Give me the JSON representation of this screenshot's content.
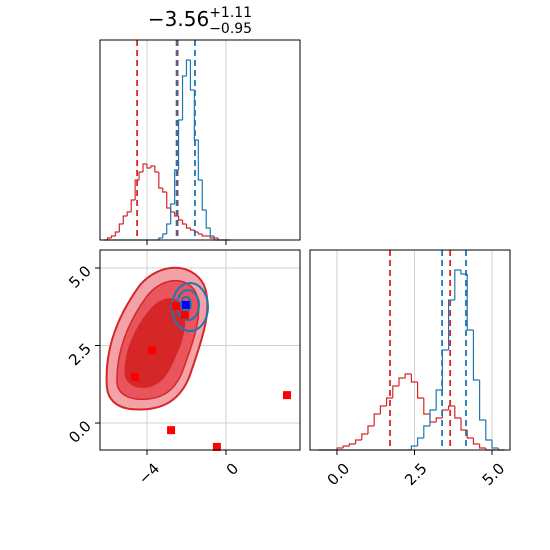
{
  "chart_data": [
    {
      "type": "histogram",
      "title": "−3.56",
      "title_sup": "+1.11",
      "title_sub": "−0.95",
      "bins": [
        -6.2,
        -6.0,
        -5.8,
        -5.6,
        -5.4,
        -5.2,
        -5.0,
        -4.8,
        -4.6,
        -4.4,
        -4.2,
        -4.0,
        -3.8,
        -3.6,
        -3.4,
        -3.2,
        -3.0,
        -2.8,
        -2.6,
        -2.4,
        -2.2,
        -2.0,
        -1.8,
        -1.6,
        -1.4,
        -1.2,
        -1.0,
        -0.8,
        -0.6,
        -0.4,
        -0.2,
        0.0,
        0.2
      ],
      "series": [
        {
          "color": "#d62728",
          "values": [
            0,
            1,
            2,
            4,
            8,
            12,
            14,
            20,
            30,
            34,
            38,
            36,
            37,
            34,
            26,
            24,
            16,
            14,
            12,
            10,
            8,
            6,
            5,
            4,
            3,
            2,
            2,
            1,
            1,
            0,
            0,
            0
          ],
          "quantiles": [
            -4.5,
            -2.45
          ]
        },
        {
          "color": "#1f77b4",
          "values": [
            0,
            0,
            0,
            0,
            0,
            0,
            0,
            0,
            0,
            0,
            0,
            0,
            0,
            0,
            1,
            3,
            8,
            18,
            35,
            60,
            82,
            90,
            75,
            50,
            30,
            15,
            6,
            2,
            0,
            0,
            0,
            0
          ],
          "quantiles": [
            -2.5,
            -1.57
          ]
        }
      ],
      "xlim": [
        -6.38,
        3.75
      ],
      "xticks": [
        -4,
        0
      ],
      "ylim": [
        0,
        100
      ],
      "grid": true
    },
    {
      "type": "scatter",
      "series": [
        {
          "color": "#ff0000",
          "x": [
            -4.61,
            -3.75,
            -2.78,
            -0.46,
            3.09,
            -2.53,
            -2.08
          ],
          "y": [
            1.48,
            2.35,
            -0.23,
            -0.77,
            0.9,
            3.77,
            3.48
          ]
        },
        {
          "color": "#0000ff",
          "x": [
            -2.03
          ],
          "y": [
            3.81
          ]
        }
      ],
      "xlim": [
        -6.38,
        3.75
      ],
      "xticks": [
        {
          "value": -4,
          "label": "−4"
        },
        0
      ],
      "ylim": [
        -0.87,
        5.58
      ],
      "yticks": [
        {
          "value": 0,
          "label": "0.0"
        },
        2.5,
        {
          "value": 5,
          "label": "5.0"
        }
      ],
      "grid": true
    },
    {
      "type": "histogram",
      "bins": [
        -0.6,
        -0.4,
        -0.2,
        0.0,
        0.2,
        0.4,
        0.6,
        0.8,
        1.0,
        1.2,
        1.4,
        1.6,
        1.8,
        2.0,
        2.2,
        2.4,
        2.6,
        2.8,
        3.0,
        3.2,
        3.4,
        3.6,
        3.8,
        4.0,
        4.2,
        4.4,
        4.6,
        4.8,
        5.0,
        5.2,
        5.4
      ],
      "series": [
        {
          "color": "#d62728",
          "values": [
            0,
            0,
            0,
            1,
            2,
            3,
            5,
            8,
            12,
            18,
            22,
            26,
            32,
            36,
            38,
            34,
            26,
            18,
            14,
            16,
            20,
            22,
            16,
            10,
            6,
            3,
            1,
            0,
            0,
            0
          ],
          "quantiles": [
            1.71,
            3.65
          ]
        },
        {
          "color": "#1f77b4",
          "values": [
            0,
            0,
            0,
            0,
            0,
            0,
            0,
            0,
            0,
            0,
            0,
            0,
            0,
            0,
            0,
            2,
            6,
            12,
            20,
            30,
            50,
            75,
            90,
            88,
            60,
            35,
            15,
            5,
            1,
            0
          ],
          "quantiles": [
            3.39,
            4.16
          ]
        }
      ],
      "xlim": [
        -0.87,
        5.58
      ],
      "xticks": [
        {
          "value": 0,
          "label": "0.0"
        },
        2.5,
        {
          "value": 5,
          "label": "5.0"
        }
      ],
      "ylim": [
        0,
        100
      ],
      "grid": true
    }
  ]
}
